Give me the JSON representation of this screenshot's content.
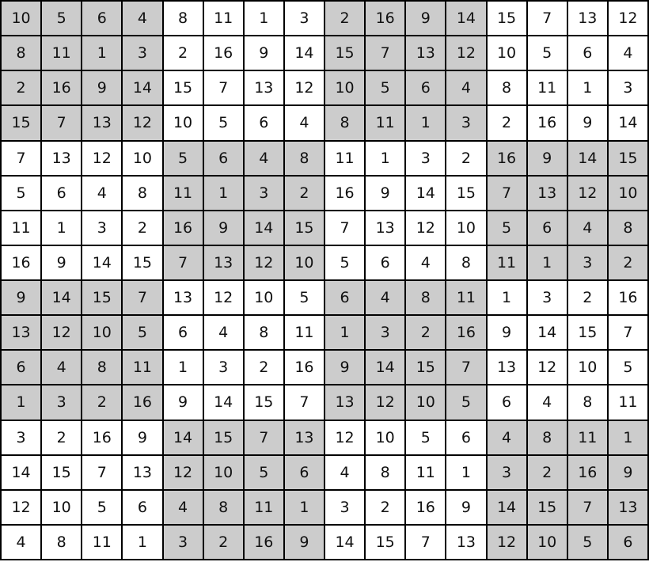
{
  "puzzle": {
    "size": 16,
    "box_size": 4,
    "shaded_color": "#cccccc",
    "shading_pattern": "checkerboard-4x4-boxes-top-left-shaded",
    "rows": [
      [
        10,
        5,
        6,
        4,
        8,
        11,
        1,
        3,
        2,
        16,
        9,
        14,
        15,
        7,
        13,
        12
      ],
      [
        8,
        11,
        1,
        3,
        2,
        16,
        9,
        14,
        15,
        7,
        13,
        12,
        10,
        5,
        6,
        4
      ],
      [
        2,
        16,
        9,
        14,
        15,
        7,
        13,
        12,
        10,
        5,
        6,
        4,
        8,
        11,
        1,
        3
      ],
      [
        15,
        7,
        13,
        12,
        10,
        5,
        6,
        4,
        8,
        11,
        1,
        3,
        2,
        16,
        9,
        14
      ],
      [
        7,
        13,
        12,
        10,
        5,
        6,
        4,
        8,
        11,
        1,
        3,
        2,
        16,
        9,
        14,
        15
      ],
      [
        5,
        6,
        4,
        8,
        11,
        1,
        3,
        2,
        16,
        9,
        14,
        15,
        7,
        13,
        12,
        10
      ],
      [
        11,
        1,
        3,
        2,
        16,
        9,
        14,
        15,
        7,
        13,
        12,
        10,
        5,
        6,
        4,
        8
      ],
      [
        16,
        9,
        14,
        15,
        7,
        13,
        12,
        10,
        5,
        6,
        4,
        8,
        11,
        1,
        3,
        2
      ],
      [
        9,
        14,
        15,
        7,
        13,
        12,
        10,
        5,
        6,
        4,
        8,
        11,
        1,
        3,
        2,
        16
      ],
      [
        13,
        12,
        10,
        5,
        6,
        4,
        8,
        11,
        1,
        3,
        2,
        16,
        9,
        14,
        15,
        7
      ],
      [
        6,
        4,
        8,
        11,
        1,
        3,
        2,
        16,
        9,
        14,
        15,
        7,
        13,
        12,
        10,
        5
      ],
      [
        1,
        3,
        2,
        16,
        9,
        14,
        15,
        7,
        13,
        12,
        10,
        5,
        6,
        4,
        8,
        11
      ],
      [
        3,
        2,
        16,
        9,
        14,
        15,
        7,
        13,
        12,
        10,
        5,
        6,
        4,
        8,
        11,
        1
      ],
      [
        14,
        15,
        7,
        13,
        12,
        10,
        5,
        6,
        4,
        8,
        11,
        1,
        3,
        2,
        16,
        9
      ],
      [
        12,
        10,
        5,
        6,
        4,
        8,
        11,
        1,
        3,
        2,
        16,
        9,
        14,
        15,
        7,
        13
      ],
      [
        4,
        8,
        11,
        1,
        3,
        2,
        16,
        9,
        14,
        15,
        7,
        13,
        12,
        10,
        5,
        6
      ]
    ]
  }
}
